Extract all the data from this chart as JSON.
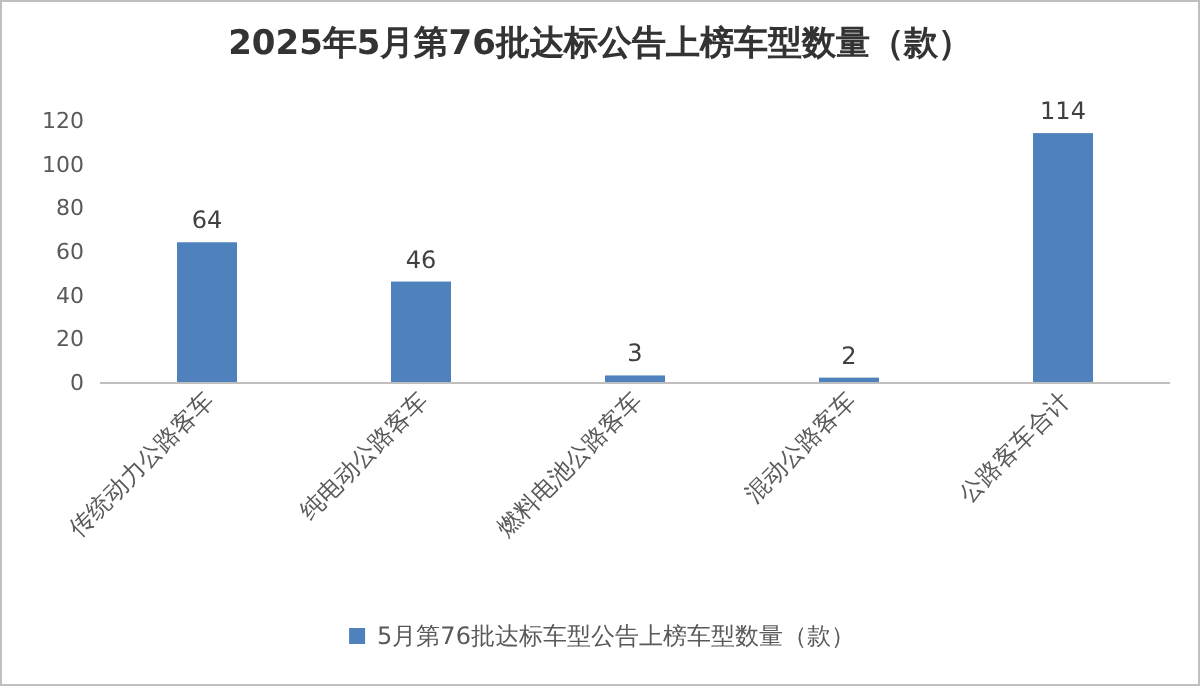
{
  "chart_data": {
    "type": "bar",
    "title": "2025年5月第76批达标公告上榜车型数量（款）",
    "categories": [
      "传统动力公路客车",
      "纯电动公路客车",
      "燃料电池公路客车",
      "混动公路客车",
      "公路客车合计"
    ],
    "series": [
      {
        "name": "5月第76批达标车型公告上榜车型数量（款）",
        "color": "#4f81bd",
        "values": [
          64,
          46,
          3,
          2,
          114
        ]
      }
    ],
    "ylim": [
      0,
      120
    ],
    "yticks": [
      0,
      20,
      40,
      60,
      80,
      100,
      120
    ],
    "grid": false,
    "legend": "bottom",
    "data_labels": true
  }
}
